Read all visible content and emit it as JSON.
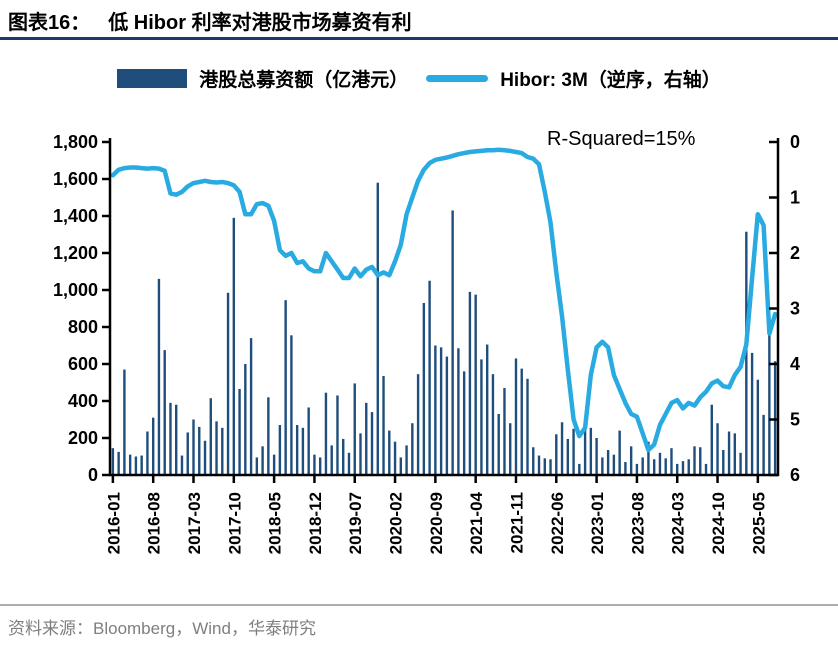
{
  "header": {
    "title_prefix": "图表16：",
    "title": "低 Hibor 利率对港股市场募资有利"
  },
  "legend": {
    "bar_label": "港股总募资额（亿港元）",
    "line_label": "Hibor: 3M（逆序，右轴）"
  },
  "annotation": "R-Squared=15%",
  "footer": {
    "source": "资料来源：Bloomberg，Wind，华泰研究"
  },
  "colors": {
    "bar": "#1F4E7C",
    "line": "#29ABE2",
    "axis": "#000000",
    "title_rule": "#1F3864",
    "footer_rule": "#ADADAD",
    "footer_text": "#7F7F7F"
  },
  "chart_data": {
    "type": "combo-bar-line",
    "x_start": "2016-01",
    "months_count": 116,
    "x_tick_every": 7,
    "x_tick_labels": [
      "2016-01",
      "2016-08",
      "2017-03",
      "2017-10",
      "2018-05",
      "2018-12",
      "2019-07",
      "2020-02",
      "2020-09",
      "2021-04",
      "2021-11",
      "2022-06",
      "2023-01",
      "2023-08",
      "2024-03",
      "2024-10",
      "2025-05"
    ],
    "left_axis": {
      "title": "港股总募资额（亿港元）",
      "min": 0,
      "max": 1800,
      "tick_step": 200,
      "tick_labels": [
        "0",
        "200",
        "400",
        "600",
        "800",
        "1,000",
        "1,200",
        "1,400",
        "1,600",
        "1,800"
      ]
    },
    "right_axis": {
      "title": "Hibor: 3M",
      "min": 0,
      "max": 6,
      "tick_step": 1,
      "reversed": true,
      "tick_labels": [
        "0",
        "1",
        "2",
        "3",
        "4",
        "5",
        "6"
      ]
    },
    "bar_series": {
      "name": "港股总募资额（亿港元）",
      "values": [
        145,
        125,
        570,
        110,
        100,
        105,
        235,
        310,
        1060,
        675,
        390,
        380,
        105,
        230,
        300,
        260,
        185,
        415,
        290,
        255,
        985,
        1390,
        465,
        600,
        740,
        95,
        155,
        420,
        110,
        270,
        945,
        755,
        270,
        255,
        365,
        110,
        95,
        445,
        160,
        430,
        195,
        120,
        495,
        225,
        390,
        340,
        1580,
        535,
        240,
        180,
        95,
        160,
        280,
        545,
        930,
        1050,
        700,
        690,
        640,
        1430,
        685,
        560,
        990,
        975,
        625,
        705,
        545,
        330,
        470,
        280,
        630,
        575,
        520,
        150,
        105,
        90,
        85,
        220,
        285,
        195,
        250,
        60,
        305,
        255,
        200,
        95,
        135,
        110,
        240,
        70,
        155,
        60,
        95,
        180,
        85,
        120,
        90,
        145,
        60,
        75,
        85,
        155,
        150,
        60,
        380,
        280,
        135,
        235,
        225,
        120,
        1315,
        660,
        515,
        325,
        800,
        615
      ]
    },
    "line_series": {
      "name": "Hibor: 3M（逆序，右轴）",
      "axis": "right",
      "values": [
        0.6,
        0.5,
        0.47,
        0.46,
        0.46,
        0.47,
        0.48,
        0.47,
        0.48,
        0.52,
        0.93,
        0.95,
        0.9,
        0.8,
        0.74,
        0.72,
        0.7,
        0.72,
        0.73,
        0.72,
        0.74,
        0.78,
        0.9,
        1.3,
        1.3,
        1.12,
        1.1,
        1.15,
        1.42,
        1.95,
        2.05,
        2.0,
        2.18,
        2.15,
        2.28,
        2.33,
        2.33,
        2.0,
        2.15,
        2.3,
        2.45,
        2.45,
        2.28,
        2.42,
        2.3,
        2.25,
        2.4,
        2.35,
        2.4,
        2.15,
        1.85,
        1.3,
        1.0,
        0.7,
        0.5,
        0.38,
        0.32,
        0.3,
        0.28,
        0.25,
        0.22,
        0.2,
        0.18,
        0.17,
        0.16,
        0.15,
        0.15,
        0.14,
        0.15,
        0.16,
        0.18,
        0.2,
        0.27,
        0.3,
        0.4,
        0.9,
        1.45,
        2.35,
        3.15,
        4.1,
        5.0,
        5.3,
        5.15,
        4.2,
        3.7,
        3.6,
        3.7,
        4.2,
        4.45,
        4.7,
        4.9,
        4.95,
        5.25,
        5.55,
        5.45,
        5.1,
        4.9,
        4.7,
        4.65,
        4.8,
        4.7,
        4.75,
        4.6,
        4.5,
        4.35,
        4.3,
        4.4,
        4.42,
        4.2,
        4.05,
        3.65,
        2.45,
        1.3,
        1.5,
        3.45,
        3.1
      ]
    }
  }
}
